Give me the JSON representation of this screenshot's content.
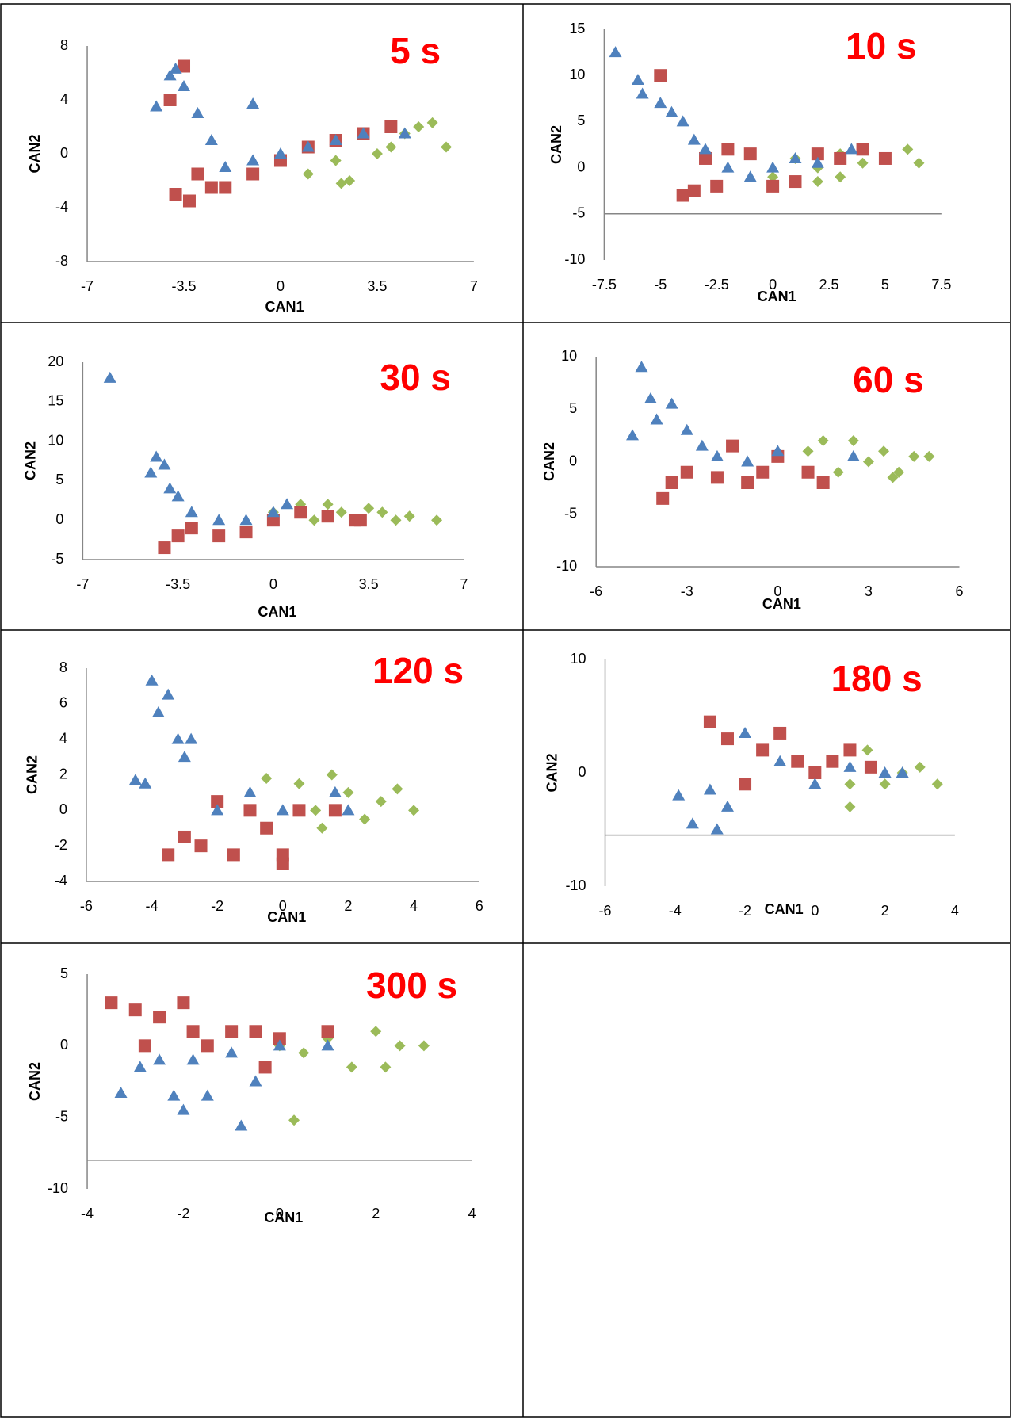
{
  "chart_data": [
    {
      "type": "scatter",
      "title": "5 s",
      "xlabel": "CAN1",
      "ylabel": "CAN2",
      "xlim": [
        -7,
        7
      ],
      "ylim": [
        -8,
        8
      ],
      "xticks": [
        -7,
        -3.5,
        0,
        3.5,
        7
      ],
      "yticks": [
        -8,
        -4,
        0,
        4,
        8
      ],
      "series": [
        {
          "color": "#9bbb59",
          "marker": "diamond",
          "x": [
            1,
            2,
            2.5,
            3.5,
            4,
            4.5,
            5,
            5.5,
            6,
            2.2
          ],
          "values": [
            -1.5,
            -0.5,
            -2,
            0,
            0.5,
            1.5,
            2,
            2.3,
            0.5,
            -2.2
          ]
        },
        {
          "color": "#c0504d",
          "marker": "square",
          "x": [
            -4,
            -3.5,
            -3.3,
            -3,
            -2.5,
            -2,
            -1,
            0,
            1,
            2,
            3,
            4,
            -3.8
          ],
          "values": [
            4,
            6.5,
            -3.5,
            -1.5,
            -2.5,
            -2.5,
            -1.5,
            -0.5,
            0.5,
            1,
            1.5,
            2,
            -3
          ]
        },
        {
          "color": "#4f81bd",
          "marker": "triangle",
          "x": [
            -4.5,
            -4,
            -3.8,
            -3.5,
            -3,
            -2.5,
            -2,
            -1,
            0,
            1,
            2,
            3,
            4.5,
            -1
          ],
          "values": [
            3.5,
            5.8,
            6.3,
            5,
            3,
            1,
            -1,
            -0.5,
            0,
            0.5,
            1,
            1.5,
            1.5,
            3.7
          ]
        }
      ]
    },
    {
      "type": "scatter",
      "title": "10 s",
      "xlabel": "CAN1",
      "ylabel": "CAN2",
      "xlim": [
        -7.5,
        7.5
      ],
      "ylim": [
        -10,
        15
      ],
      "xticks": [
        -7.5,
        -5,
        -2.5,
        0,
        2.5,
        5,
        7.5
      ],
      "yticks": [
        -10,
        -5,
        0,
        5,
        10,
        15
      ],
      "x_axis_crosses": -5,
      "series": [
        {
          "color": "#9bbb59",
          "marker": "diamond",
          "x": [
            0,
            1,
            2,
            3,
            4,
            5,
            6,
            6.5,
            3,
            2
          ],
          "values": [
            -1,
            1,
            0,
            1.5,
            0.5,
            1,
            2,
            0.5,
            -1,
            -1.5
          ]
        },
        {
          "color": "#c0504d",
          "marker": "square",
          "x": [
            -5,
            -4,
            -3.5,
            -3,
            -2,
            -1,
            0,
            1,
            2,
            3,
            4,
            5,
            -2.5
          ],
          "values": [
            10,
            -3,
            -2.5,
            1,
            2,
            1.5,
            -2,
            -1.5,
            1.5,
            1,
            2,
            1,
            -2
          ]
        },
        {
          "color": "#4f81bd",
          "marker": "triangle",
          "x": [
            -7,
            -6,
            -5.8,
            -5,
            -4.5,
            -4,
            -3.5,
            -3,
            -2,
            -1,
            0,
            1,
            2,
            3.5
          ],
          "values": [
            12.5,
            9.5,
            8,
            7,
            6,
            5,
            3,
            2,
            0,
            -1,
            0,
            1,
            0.5,
            2
          ]
        }
      ]
    },
    {
      "type": "scatter",
      "title": "30 s",
      "xlabel": "CAN1",
      "ylabel": "CAN2",
      "xlim": [
        -7,
        7
      ],
      "ylim": [
        -5,
        20
      ],
      "xticks": [
        -7,
        -3.5,
        0,
        3.5,
        7
      ],
      "yticks": [
        -5,
        0,
        5,
        10,
        15,
        20
      ],
      "series": [
        {
          "color": "#9bbb59",
          "marker": "diamond",
          "x": [
            0,
            1,
            1.5,
            2,
            2.5,
            3,
            3.5,
            4,
            4.5,
            5,
            6
          ],
          "values": [
            1,
            2,
            0,
            2,
            1,
            0,
            1.5,
            1,
            0,
            0.5,
            0
          ]
        },
        {
          "color": "#c0504d",
          "marker": "square",
          "x": [
            -4,
            -3.5,
            -3,
            -2,
            -1,
            0,
            1,
            2,
            3,
            3.2
          ],
          "values": [
            -3.5,
            -2,
            -1,
            -2,
            -1.5,
            0,
            1,
            0.5,
            0,
            0
          ]
        },
        {
          "color": "#4f81bd",
          "marker": "triangle",
          "x": [
            -6,
            -4.5,
            -4.3,
            -4,
            -3.8,
            -3.5,
            -3,
            -2,
            -1,
            0,
            0.5
          ],
          "values": [
            18,
            6,
            8,
            7,
            4,
            3,
            1,
            0,
            0,
            1,
            2
          ]
        }
      ]
    },
    {
      "type": "scatter",
      "title": "60 s",
      "xlabel": "CAN1",
      "ylabel": "CAN2",
      "xlim": [
        -6,
        6
      ],
      "ylim": [
        -10,
        10
      ],
      "xticks": [
        -6,
        -3,
        0,
        3,
        6
      ],
      "yticks": [
        -10,
        -5,
        0,
        5,
        10
      ],
      "series": [
        {
          "color": "#9bbb59",
          "marker": "diamond",
          "x": [
            1,
            1.5,
            2,
            2.5,
            3,
            3.5,
            4,
            4.5,
            5,
            3.8
          ],
          "values": [
            1,
            2,
            -1,
            2,
            0,
            1,
            -1,
            0.5,
            0.5,
            -1.5
          ]
        },
        {
          "color": "#c0504d",
          "marker": "square",
          "x": [
            -3.8,
            -3.5,
            -3,
            -2,
            -1.5,
            -1,
            -0.5,
            0,
            1,
            1.5
          ],
          "values": [
            -3.5,
            -2,
            -1,
            -1.5,
            1.5,
            -2,
            -1,
            0.5,
            -1,
            -2
          ]
        },
        {
          "color": "#4f81bd",
          "marker": "triangle",
          "x": [
            -4.8,
            -4.5,
            -4.2,
            -4,
            -3.5,
            -3,
            -2.5,
            -2,
            -1,
            0,
            2.5
          ],
          "values": [
            2.5,
            9,
            6,
            4,
            5.5,
            3,
            1.5,
            0.5,
            0,
            1,
            0.5
          ]
        }
      ]
    },
    {
      "type": "scatter",
      "title": "120 s",
      "xlabel": "CAN1",
      "ylabel": "CAN2",
      "xlim": [
        -6,
        6
      ],
      "ylim": [
        -4,
        8
      ],
      "xticks": [
        -6,
        -4,
        -2,
        0,
        2,
        4,
        6
      ],
      "yticks": [
        -4,
        -2,
        0,
        2,
        4,
        6,
        8
      ],
      "series": [
        {
          "color": "#9bbb59",
          "marker": "diamond",
          "x": [
            -0.5,
            0.5,
            1,
            1.5,
            2,
            2.5,
            3,
            3.5,
            4,
            1.2
          ],
          "values": [
            1.8,
            1.5,
            0,
            2,
            1,
            -0.5,
            0.5,
            1.2,
            0,
            -1
          ]
        },
        {
          "color": "#c0504d",
          "marker": "square",
          "x": [
            -3.5,
            -3,
            -2.5,
            -2,
            -1.5,
            -1,
            -0.5,
            0,
            0.5,
            1.6,
            0
          ],
          "values": [
            -2.5,
            -1.5,
            -2,
            0.5,
            -2.5,
            0,
            -1,
            -3,
            0,
            0,
            -2.5
          ]
        },
        {
          "color": "#4f81bd",
          "marker": "triangle",
          "x": [
            -4.5,
            -4.2,
            -4,
            -3.8,
            -3.5,
            -3.2,
            -3,
            -2.8,
            -2,
            -1,
            0,
            1.6,
            2
          ],
          "values": [
            1.7,
            1.5,
            7.3,
            5.5,
            6.5,
            4,
            3,
            4,
            0,
            1,
            0,
            1,
            0
          ]
        }
      ]
    },
    {
      "type": "scatter",
      "title": "180 s",
      "xlabel": "CAN1",
      "ylabel": "CAN2",
      "xlim": [
        -6,
        4
      ],
      "ylim": [
        -10,
        10
      ],
      "xticks": [
        -6,
        -4,
        -2,
        0,
        2,
        4
      ],
      "yticks": [
        -10,
        0,
        10
      ],
      "x_axis_crosses": -5.5,
      "series": [
        {
          "color": "#9bbb59",
          "marker": "diamond",
          "x": [
            -0.5,
            0,
            0.5,
            1,
            1.5,
            2,
            2.5,
            3,
            3.5,
            1
          ],
          "values": [
            1,
            0,
            1,
            -1,
            2,
            -1,
            0,
            0.5,
            -1,
            -3
          ]
        },
        {
          "color": "#c0504d",
          "marker": "square",
          "x": [
            -3,
            -2.5,
            -2,
            -1.5,
            -1,
            -0.5,
            0,
            0.5,
            1,
            1.6
          ],
          "values": [
            4.5,
            3,
            -1,
            2,
            3.5,
            1,
            0,
            1,
            2,
            0.5
          ]
        },
        {
          "color": "#4f81bd",
          "marker": "triangle",
          "x": [
            -3.9,
            -3.5,
            -3,
            -2.8,
            -2.5,
            -2,
            -1,
            0,
            1,
            2,
            2.5
          ],
          "values": [
            -2,
            -4.5,
            -1.5,
            -5,
            -3,
            3.5,
            1,
            -1,
            0.5,
            0,
            0
          ]
        }
      ]
    },
    {
      "type": "scatter",
      "title": "300 s",
      "xlabel": "CAN1",
      "ylabel": "CAN2",
      "xlim": [
        -4,
        4
      ],
      "ylim": [
        -10,
        5
      ],
      "xticks": [
        -4,
        -2,
        0,
        2,
        4
      ],
      "yticks": [
        -10,
        -5,
        0,
        5
      ],
      "x_axis_crosses": -8,
      "series": [
        {
          "color": "#9bbb59",
          "marker": "diamond",
          "x": [
            -0.5,
            0,
            0.5,
            1,
            1.5,
            2,
            2.5,
            3,
            0.3,
            2.2
          ],
          "values": [
            1,
            0,
            -0.5,
            0.5,
            -1.5,
            1,
            0,
            0,
            -5.2,
            -1.5
          ]
        },
        {
          "color": "#c0504d",
          "marker": "square",
          "x": [
            -3.5,
            -3,
            -2.8,
            -2.5,
            -2,
            -1.8,
            -1.5,
            -1,
            -0.5,
            0,
            1,
            -0.3
          ],
          "values": [
            3,
            2.5,
            0,
            2,
            3,
            1,
            0,
            1,
            1,
            0.5,
            1,
            -1.5
          ]
        },
        {
          "color": "#4f81bd",
          "marker": "triangle",
          "x": [
            -3.3,
            -2.9,
            -2.5,
            -2.2,
            -2,
            -1.8,
            -1.5,
            -1,
            -0.8,
            -0.5,
            0,
            1
          ],
          "values": [
            -3.3,
            -1.5,
            -1,
            -3.5,
            -4.5,
            -1,
            -3.5,
            -0.5,
            -5.6,
            -2.5,
            0,
            0
          ]
        }
      ]
    }
  ]
}
